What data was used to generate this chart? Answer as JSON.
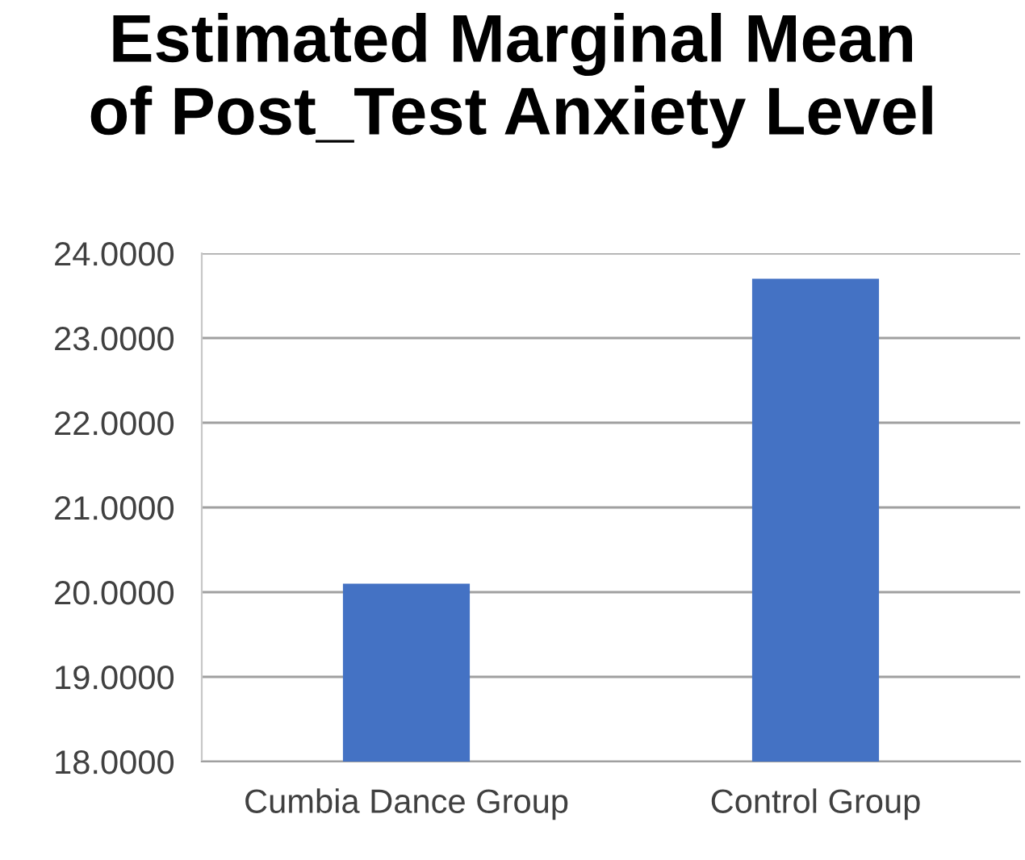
{
  "chart_data": {
    "type": "bar",
    "title": "Estimated Marginal Mean\nof Post_Test Anxiety Level",
    "categories": [
      "Cumbia Dance Group",
      "Control Group"
    ],
    "values": [
      20.1,
      23.7
    ],
    "color": "#4472c4",
    "ylim": [
      18,
      24
    ],
    "yticks": [
      {
        "value": 18,
        "label": "18.0000"
      },
      {
        "value": 19,
        "label": "19.0000"
      },
      {
        "value": 20,
        "label": "20.0000"
      },
      {
        "value": 21,
        "label": "21.0000"
      },
      {
        "value": 22,
        "label": "22.0000"
      },
      {
        "value": 23,
        "label": "23.0000"
      },
      {
        "value": 24,
        "label": "24.0000"
      }
    ],
    "grid": "y"
  }
}
